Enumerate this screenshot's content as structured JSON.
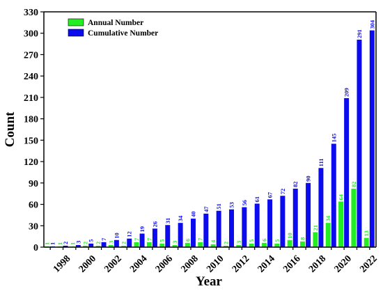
{
  "chart_data": {
    "type": "bar",
    "title": "",
    "xlabel": "Year",
    "ylabel": "Count",
    "ylim": [
      0,
      330
    ],
    "yticks": [
      0,
      30,
      60,
      90,
      120,
      150,
      180,
      210,
      240,
      270,
      300,
      330
    ],
    "categories": [
      "1997",
      "1998",
      "1999",
      "2000",
      "2001",
      "2002",
      "2003",
      "2004",
      "2005",
      "2006",
      "2007",
      "2008",
      "2009",
      "2010",
      "2011",
      "2012",
      "2013",
      "2014",
      "2015",
      "2016",
      "2017",
      "2018",
      "2019",
      "2020",
      "2021",
      "2022"
    ],
    "xtick_labels": [
      "1998",
      "2000",
      "2002",
      "2004",
      "2006",
      "2008",
      "2010",
      "2012",
      "2014",
      "2016",
      "2018",
      "2020",
      "2022"
    ],
    "legend_position": "top-left",
    "grid": false,
    "series": [
      {
        "name": "Annual Number",
        "color": "#22ee22",
        "values": [
          1,
          1,
          1,
          2,
          2,
          3,
          2,
          7,
          7,
          5,
          3,
          6,
          7,
          4,
          2,
          3,
          5,
          6,
          5,
          10,
          8,
          21,
          34,
          64,
          82,
          13
        ]
      },
      {
        "name": "Cumulative Number",
        "color": "#0b0bee",
        "values": [
          1,
          2,
          3,
          5,
          7,
          10,
          12,
          19,
          26,
          31,
          34,
          40,
          47,
          51,
          53,
          56,
          61,
          67,
          72,
          82,
          90,
          111,
          145,
          209,
          291,
          304
        ]
      }
    ]
  }
}
